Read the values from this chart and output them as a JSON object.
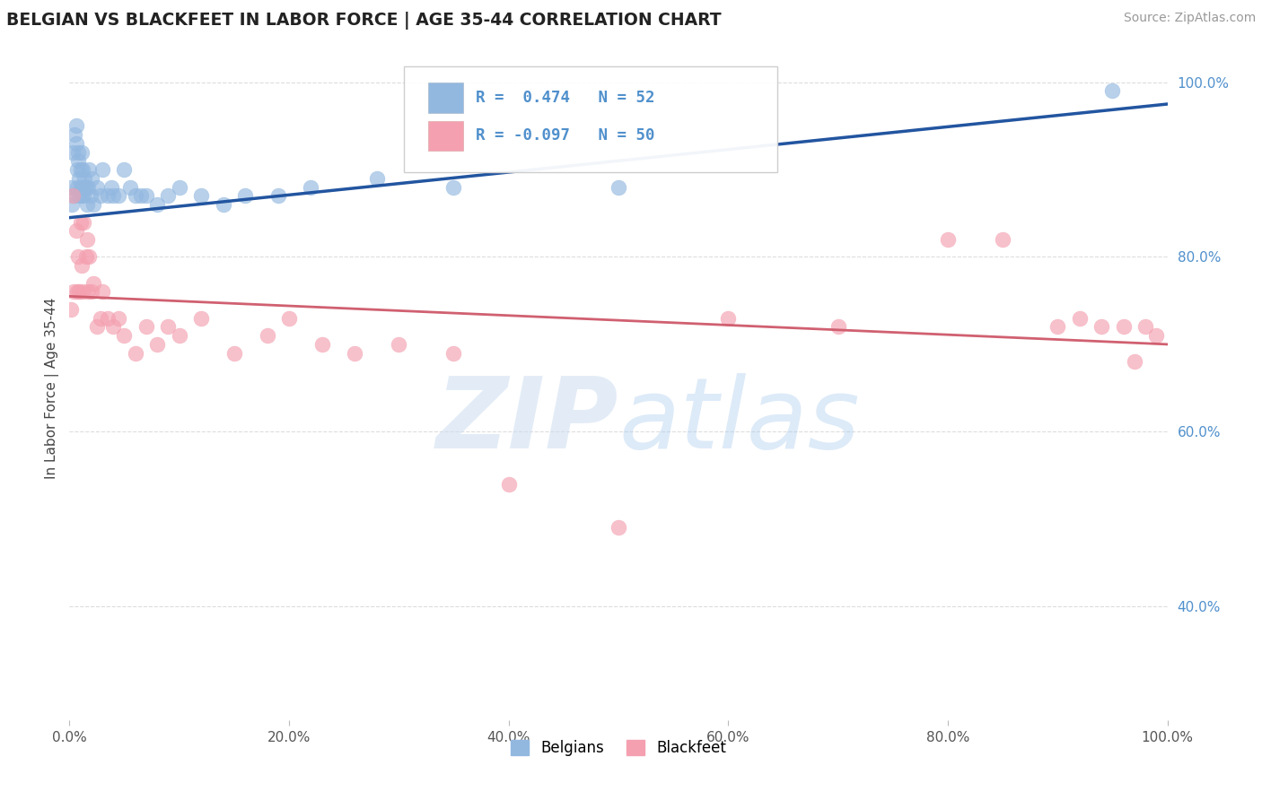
{
  "title": "BELGIAN VS BLACKFEET IN LABOR FORCE | AGE 35-44 CORRELATION CHART",
  "source": "Source: ZipAtlas.com",
  "ylabel": "In Labor Force | Age 35-44",
  "belgian_R": 0.474,
  "belgian_N": 52,
  "blackfeet_R": -0.097,
  "blackfeet_N": 50,
  "belgian_color": "#92b8e0",
  "blackfeet_color": "#f4a0b0",
  "belgian_line_color": "#2255a0",
  "blackfeet_line_color": "#d06070",
  "ytick_color": "#5090cc",
  "xtick_color": "#555555",
  "grid_color": "#dddddd",
  "xlim": [
    0.0,
    1.0
  ],
  "ylim": [
    0.27,
    1.03
  ],
  "yticks": [
    0.4,
    0.6,
    0.8,
    1.0
  ],
  "ytick_labels": [
    "40.0%",
    "60.0%",
    "80.0%",
    "100.0%"
  ],
  "xticks": [
    0.0,
    0.2,
    0.4,
    0.6,
    0.8,
    1.0
  ],
  "xtick_labels": [
    "0.0%",
    "20.0%",
    "40.0%",
    "60.0%",
    "80.0%",
    "100.0%"
  ],
  "belgian_x": [
    0.001,
    0.002,
    0.003,
    0.004,
    0.005,
    0.006,
    0.006,
    0.007,
    0.007,
    0.008,
    0.008,
    0.009,
    0.009,
    0.01,
    0.01,
    0.011,
    0.011,
    0.012,
    0.012,
    0.013,
    0.014,
    0.015,
    0.016,
    0.017,
    0.018,
    0.019,
    0.02,
    0.022,
    0.025,
    0.028,
    0.03,
    0.035,
    0.038,
    0.04,
    0.045,
    0.05,
    0.055,
    0.06,
    0.065,
    0.07,
    0.08,
    0.09,
    0.1,
    0.12,
    0.14,
    0.16,
    0.19,
    0.22,
    0.28,
    0.35,
    0.5,
    0.95
  ],
  "belgian_y": [
    0.88,
    0.86,
    0.92,
    0.87,
    0.94,
    0.93,
    0.95,
    0.9,
    0.88,
    0.91,
    0.92,
    0.89,
    0.87,
    0.9,
    0.88,
    0.92,
    0.87,
    0.9,
    0.88,
    0.87,
    0.89,
    0.88,
    0.86,
    0.88,
    0.9,
    0.87,
    0.89,
    0.86,
    0.88,
    0.87,
    0.9,
    0.87,
    0.88,
    0.87,
    0.87,
    0.9,
    0.88,
    0.87,
    0.87,
    0.87,
    0.86,
    0.87,
    0.88,
    0.87,
    0.86,
    0.87,
    0.87,
    0.88,
    0.89,
    0.88,
    0.88,
    0.99
  ],
  "blackfeet_x": [
    0.001,
    0.003,
    0.004,
    0.006,
    0.007,
    0.008,
    0.009,
    0.01,
    0.011,
    0.012,
    0.013,
    0.015,
    0.016,
    0.017,
    0.018,
    0.02,
    0.022,
    0.025,
    0.028,
    0.03,
    0.035,
    0.04,
    0.045,
    0.05,
    0.06,
    0.07,
    0.08,
    0.09,
    0.1,
    0.12,
    0.15,
    0.18,
    0.2,
    0.23,
    0.26,
    0.3,
    0.35,
    0.4,
    0.5,
    0.6,
    0.7,
    0.8,
    0.85,
    0.9,
    0.92,
    0.94,
    0.96,
    0.97,
    0.98,
    0.99
  ],
  "blackfeet_y": [
    0.74,
    0.87,
    0.76,
    0.83,
    0.76,
    0.8,
    0.76,
    0.84,
    0.79,
    0.76,
    0.84,
    0.8,
    0.82,
    0.76,
    0.8,
    0.76,
    0.77,
    0.72,
    0.73,
    0.76,
    0.73,
    0.72,
    0.73,
    0.71,
    0.69,
    0.72,
    0.7,
    0.72,
    0.71,
    0.73,
    0.69,
    0.71,
    0.73,
    0.7,
    0.69,
    0.7,
    0.69,
    0.54,
    0.49,
    0.73,
    0.72,
    0.82,
    0.82,
    0.72,
    0.73,
    0.72,
    0.72,
    0.68,
    0.72,
    0.71
  ]
}
